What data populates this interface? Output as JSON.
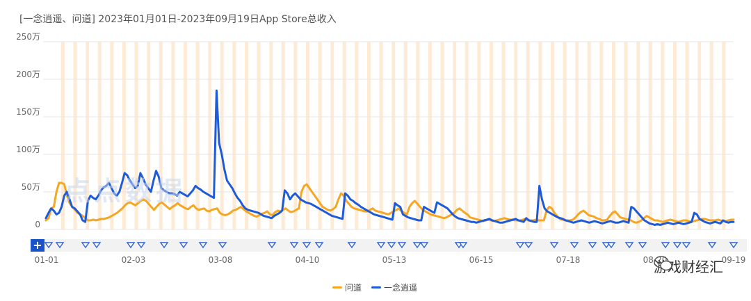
{
  "title": "[一念逍遥、问道]  2023年01月01日-2023年09月19日App Store总收入",
  "brand_watermark": "点点数据",
  "social_watermark": "游戏财经汇",
  "add_button_label": "+",
  "colors": {
    "wendao": "#f5a623",
    "yinian": "#1f5bd6",
    "stripe": "#fdebd6",
    "event_marker": "#2a62d8"
  },
  "chart_data": {
    "type": "line",
    "xlabel": "",
    "ylabel": "",
    "ylim": [
      0,
      250
    ],
    "y_ticks": [
      "0",
      "50万",
      "100万",
      "150万",
      "200万",
      "250万"
    ],
    "x_ticks": [
      "01-01",
      "02-03",
      "03-08",
      "04-10",
      "05-13",
      "06-15",
      "07-18",
      "08-20",
      "09-19"
    ],
    "legend_position": "bottom",
    "grid": "horizontal",
    "series": [
      {
        "name": "问道",
        "color_key": "wendao",
        "values": [
          12,
          15,
          28,
          30,
          50,
          62,
          62,
          60,
          45,
          35,
          30,
          26,
          22,
          20,
          18,
          15,
          12,
          12,
          13,
          12,
          13,
          14,
          14,
          15,
          16,
          18,
          20,
          22,
          25,
          28,
          32,
          35,
          36,
          34,
          32,
          35,
          38,
          40,
          38,
          34,
          30,
          26,
          30,
          34,
          36,
          33,
          30,
          27,
          30,
          32,
          35,
          32,
          30,
          28,
          27,
          30,
          32,
          28,
          26,
          27,
          28,
          25,
          24,
          26,
          27,
          28,
          22,
          20,
          19,
          20,
          22,
          25,
          26,
          28,
          30,
          27,
          24,
          22,
          20,
          18,
          17,
          19,
          21,
          22,
          24,
          20,
          19,
          23,
          25,
          24,
          26,
          28,
          25,
          23,
          24,
          26,
          28,
          50,
          58,
          60,
          55,
          50,
          45,
          40,
          35,
          30,
          28,
          26,
          25,
          27,
          30,
          40,
          48,
          45,
          38,
          34,
          30,
          28,
          27,
          26,
          25,
          24,
          24,
          26,
          28,
          25,
          24,
          23,
          22,
          21,
          20,
          22,
          24,
          26,
          28,
          24,
          22,
          20,
          30,
          35,
          38,
          34,
          30,
          26,
          24,
          22,
          20,
          19,
          18,
          17,
          16,
          15,
          16,
          18,
          20,
          22,
          26,
          28,
          25,
          22,
          20,
          16,
          15,
          14,
          13,
          12,
          11,
          12,
          13,
          12,
          11,
          12,
          13,
          14,
          15,
          14,
          13,
          13,
          12,
          12,
          12,
          13,
          14,
          12,
          12,
          12,
          13,
          12,
          12,
          12,
          25,
          30,
          28,
          22,
          18,
          14,
          13,
          12,
          12,
          12,
          13,
          16,
          20,
          23,
          25,
          22,
          19,
          18,
          17,
          15,
          14,
          12,
          12,
          13,
          18,
          22,
          24,
          20,
          16,
          15,
          14,
          13,
          12,
          10,
          9,
          10,
          12,
          15,
          18,
          16,
          14,
          12,
          12,
          11,
          10,
          11,
          12,
          13,
          12,
          11,
          10,
          11,
          12,
          12,
          11,
          10,
          11,
          12,
          13,
          14,
          14,
          13,
          12,
          12,
          12,
          13,
          12,
          11,
          11,
          12,
          13,
          13
        ]
      },
      {
        "name": "一念逍遥",
        "color_key": "yinian",
        "values": [
          15,
          22,
          28,
          25,
          20,
          22,
          30,
          45,
          50,
          40,
          30,
          28,
          24,
          20,
          12,
          10,
          38,
          45,
          42,
          40,
          45,
          52,
          56,
          58,
          62,
          55,
          48,
          45,
          50,
          62,
          75,
          72,
          65,
          60,
          55,
          58,
          75,
          68,
          60,
          55,
          50,
          65,
          78,
          70,
          55,
          52,
          50,
          48,
          48,
          47,
          45,
          50,
          48,
          46,
          44,
          48,
          52,
          58,
          55,
          53,
          50,
          48,
          46,
          44,
          42,
          185,
          115,
          100,
          80,
          65,
          60,
          55,
          48,
          42,
          38,
          32,
          28,
          26,
          25,
          24,
          23,
          22,
          20,
          18,
          17,
          16,
          15,
          18,
          20,
          22,
          25,
          52,
          48,
          40,
          45,
          48,
          44,
          40,
          38,
          36,
          35,
          34,
          32,
          30,
          28,
          26,
          24,
          22,
          20,
          18,
          17,
          16,
          15,
          14,
          48,
          45,
          40,
          38,
          35,
          33,
          30,
          28,
          26,
          24,
          22,
          20,
          19,
          18,
          17,
          16,
          15,
          14,
          13,
          35,
          32,
          30,
          20,
          18,
          16,
          15,
          14,
          13,
          12,
          12,
          30,
          28,
          26,
          24,
          22,
          36,
          34,
          32,
          30,
          28,
          24,
          20,
          17,
          15,
          14,
          13,
          12,
          11,
          10,
          10,
          9,
          10,
          11,
          12,
          13,
          14,
          12,
          11,
          10,
          9,
          9,
          10,
          11,
          12,
          13,
          14,
          12,
          11,
          10,
          15,
          12,
          11,
          10,
          10,
          58,
          40,
          28,
          24,
          22,
          20,
          18,
          16,
          15,
          14,
          12,
          11,
          10,
          9,
          10,
          11,
          12,
          11,
          10,
          9,
          10,
          11,
          10,
          9,
          8,
          9,
          10,
          11,
          10,
          9,
          9,
          10,
          11,
          10,
          9,
          30,
          28,
          24,
          20,
          16,
          12,
          10,
          8,
          7,
          6,
          7,
          6,
          7,
          8,
          9,
          8,
          7,
          8,
          9,
          8,
          7,
          8,
          9,
          10,
          22,
          20,
          14,
          12,
          10,
          9,
          8,
          9,
          10,
          9,
          8,
          12,
          10,
          9,
          10,
          10
        ]
      }
    ]
  }
}
